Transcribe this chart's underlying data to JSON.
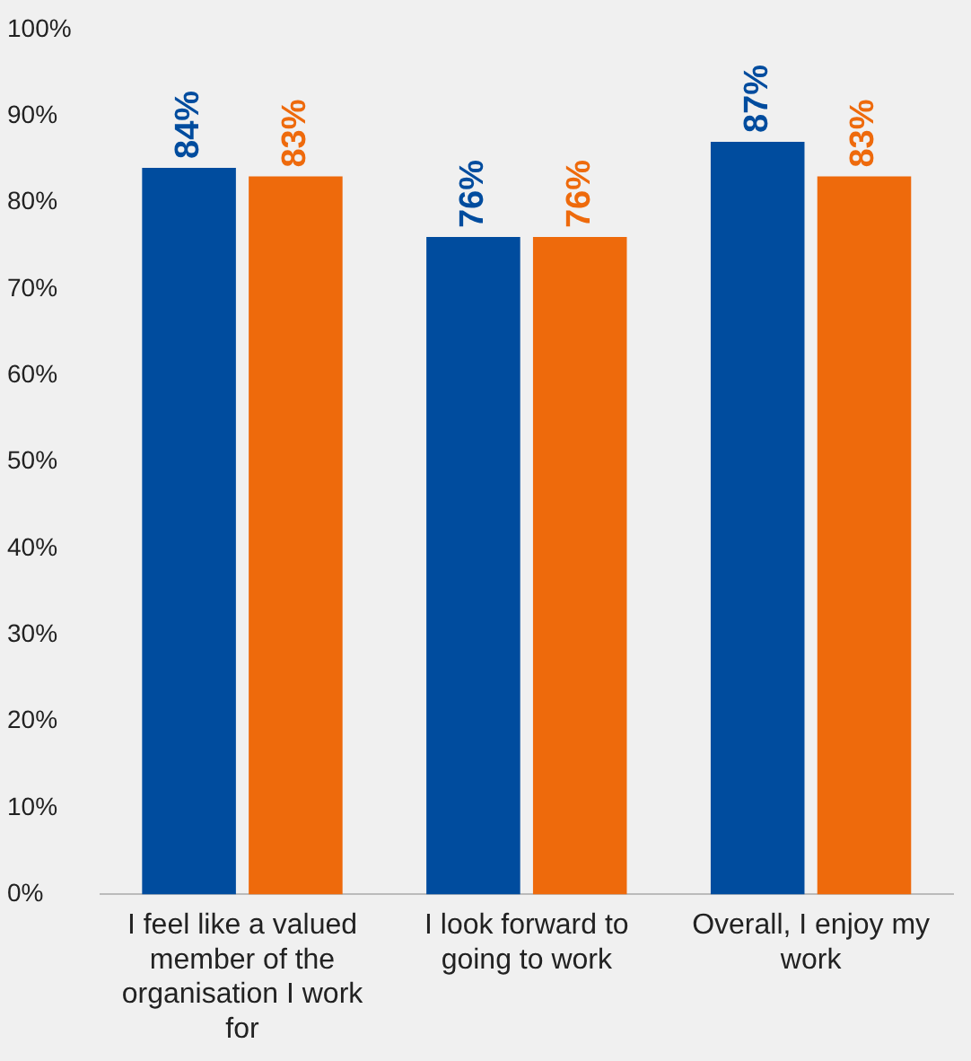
{
  "chart_data": {
    "type": "bar",
    "categories": [
      "I feel like a valued member of the organisation I work for",
      "I look forward to going to work",
      "Overall, I enjoy my work"
    ],
    "series": [
      {
        "color": "#004c9e",
        "values": [
          84,
          76,
          87
        ],
        "value_labels": [
          "84%",
          "76%",
          "87%"
        ]
      },
      {
        "color": "#ee6a0c",
        "values": [
          83,
          76,
          83
        ],
        "value_labels": [
          "83%",
          "76%",
          "83%"
        ]
      }
    ],
    "ylim": [
      0,
      100
    ],
    "yticks": [
      {
        "value": 0,
        "label": "0%"
      },
      {
        "value": 10,
        "label": "10%"
      },
      {
        "value": 20,
        "label": "20%"
      },
      {
        "value": 30,
        "label": "30%"
      },
      {
        "value": 40,
        "label": "40%"
      },
      {
        "value": 50,
        "label": "50%"
      },
      {
        "value": 60,
        "label": "60%"
      },
      {
        "value": 70,
        "label": "70%"
      },
      {
        "value": 80,
        "label": "80%"
      },
      {
        "value": 90,
        "label": "90%"
      },
      {
        "value": 100,
        "label": "100%"
      }
    ],
    "grid": false,
    "legend": false
  }
}
